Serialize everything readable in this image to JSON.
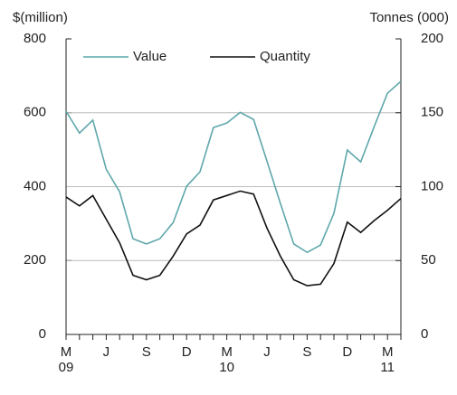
{
  "chart_data": {
    "type": "line",
    "y_label": "$(million)",
    "y2_label": "Tonnes (000)",
    "categories": [
      "M",
      null,
      null,
      "J",
      null,
      null,
      "S",
      null,
      null,
      "D",
      null,
      null,
      "M",
      null,
      null,
      "J",
      null,
      null,
      "S",
      null,
      null,
      "D",
      null,
      null,
      "M",
      null
    ],
    "year_labels": [
      "09",
      null,
      null,
      null,
      null,
      null,
      null,
      null,
      null,
      null,
      null,
      null,
      "10",
      null,
      null,
      null,
      null,
      null,
      null,
      null,
      null,
      null,
      null,
      null,
      "11",
      null
    ],
    "series": [
      {
        "name": "Value",
        "color": "#5fa7ab",
        "values": [
          604,
          545,
          580,
          447,
          386,
          259,
          245,
          259,
          303,
          401,
          440,
          560,
          572,
          601,
          582,
          469,
          355,
          245,
          222,
          242,
          328,
          499,
          467,
          562,
          653,
          685
        ]
      },
      {
        "name": "Quantity",
        "color": "#111111",
        "axis": "y2",
        "values": [
          93,
          87,
          94,
          78,
          62,
          40,
          37,
          40,
          53,
          68,
          74,
          91,
          94,
          97,
          95,
          72,
          53,
          37,
          33,
          34,
          48,
          76,
          69,
          77,
          84,
          92
        ]
      }
    ],
    "ylim": [
      0,
      800
    ],
    "yticks": [
      0,
      200,
      400,
      600,
      800
    ],
    "y2lim": [
      0,
      200
    ],
    "y2ticks": [
      0,
      50,
      100,
      150,
      200
    ],
    "grid": true,
    "legend": "top"
  }
}
